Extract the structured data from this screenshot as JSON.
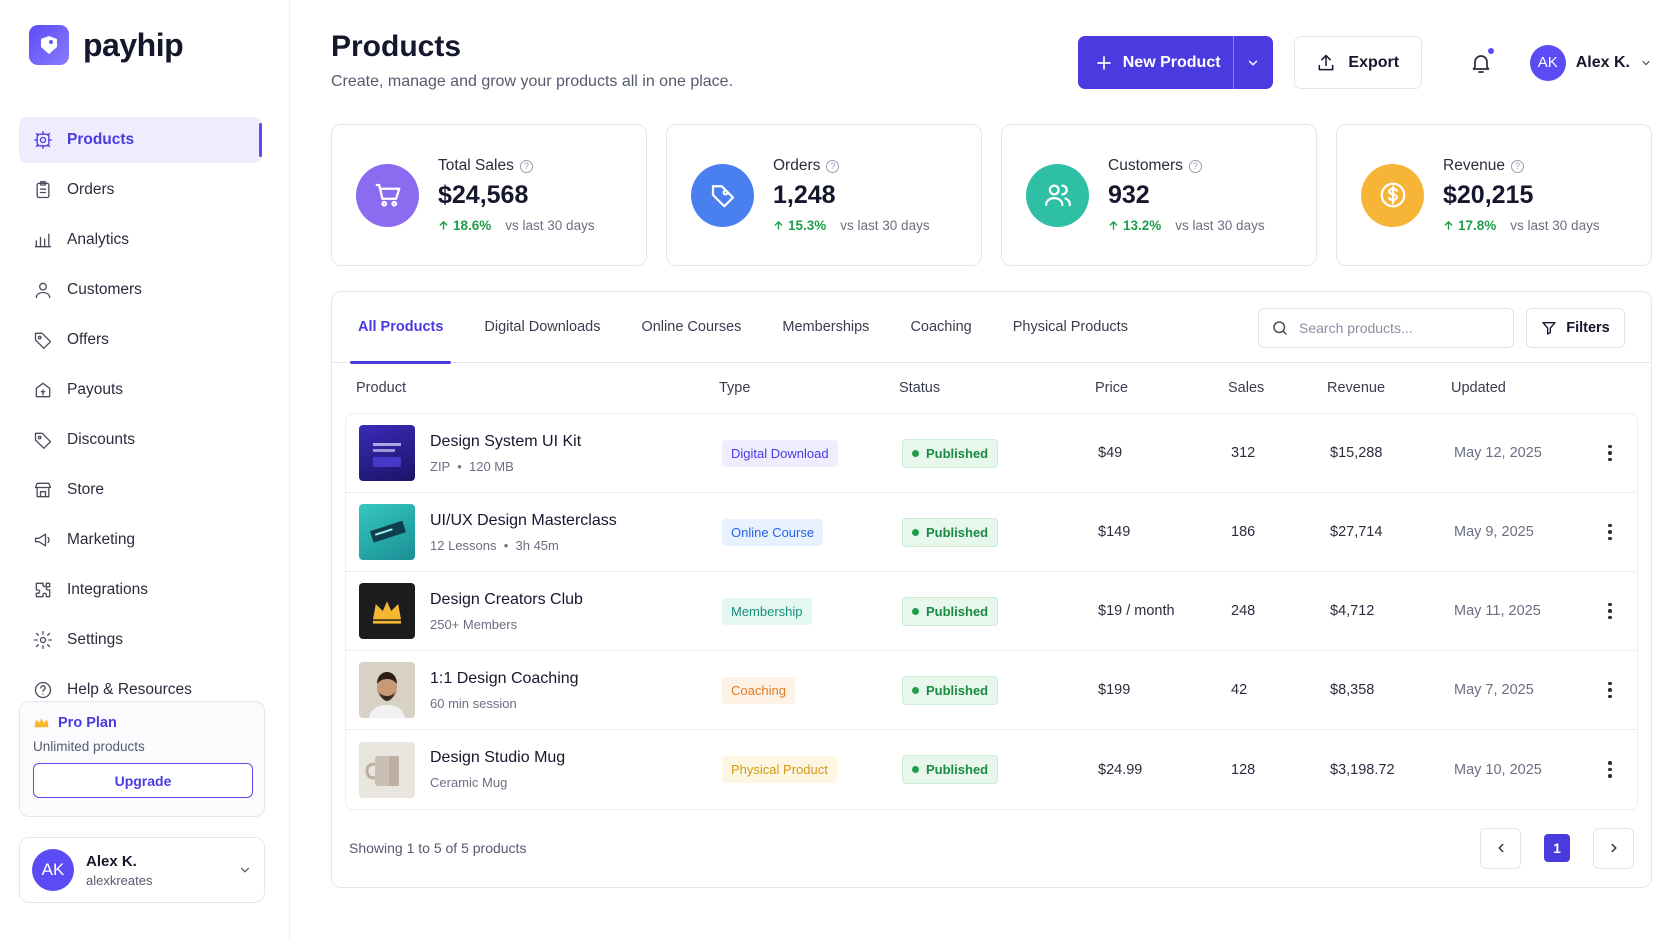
{
  "brand": {
    "name": "payhip"
  },
  "sidebar": {
    "items": [
      {
        "label": "Products",
        "icon": "box-icon",
        "active": true
      },
      {
        "label": "Orders",
        "icon": "clipboard-icon"
      },
      {
        "label": "Analytics",
        "icon": "bar-chart-icon"
      },
      {
        "label": "Customers",
        "icon": "user-icon"
      },
      {
        "label": "Offers",
        "icon": "tag-icon"
      },
      {
        "label": "Payouts",
        "icon": "payout-icon"
      },
      {
        "label": "Discounts",
        "icon": "discount-tag-icon"
      },
      {
        "label": "Store",
        "icon": "store-icon"
      },
      {
        "label": "Marketing",
        "icon": "megaphone-icon"
      },
      {
        "label": "Integrations",
        "icon": "puzzle-icon"
      },
      {
        "label": "Settings",
        "icon": "gear-icon"
      },
      {
        "label": "Help & Resources",
        "icon": "help-icon"
      }
    ],
    "plan": {
      "title": "Pro Plan",
      "subtitle": "Unlimited products",
      "upgrade_label": "Upgrade"
    },
    "user": {
      "initials": "AK",
      "name": "Alex K.",
      "handle": "alexkreates"
    }
  },
  "header": {
    "title": "Products",
    "subtitle": "Create, manage and grow your products all in one place.",
    "new_product_label": "New Product",
    "export_label": "Export",
    "user": {
      "initials": "AK",
      "name": "Alex K."
    }
  },
  "stats": [
    {
      "label": "Total Sales",
      "value": "$24,568",
      "trend": "18.6%",
      "note": "vs last 30 days",
      "color": "#8b6cf0",
      "icon": "cart-icon"
    },
    {
      "label": "Orders",
      "value": "1,248",
      "trend": "15.3%",
      "note": "vs last 30 days",
      "color": "#4a7ff0",
      "icon": "tag-icon"
    },
    {
      "label": "Customers",
      "value": "932",
      "trend": "13.2%",
      "note": "vs last 30 days",
      "color": "#2fbfa5",
      "icon": "users-icon"
    },
    {
      "label": "Revenue",
      "value": "$20,215",
      "trend": "17.8%",
      "note": "vs last 30 days",
      "color": "#f7b538",
      "icon": "dollar-icon"
    }
  ],
  "tabs": [
    "All Products",
    "Digital Downloads",
    "Online Courses",
    "Memberships",
    "Coaching",
    "Physical Products"
  ],
  "search": {
    "placeholder": "Search products..."
  },
  "filters_label": "Filters",
  "table": {
    "headers": {
      "product": "Product",
      "type": "Type",
      "status": "Status",
      "price": "Price",
      "sales": "Sales",
      "revenue": "Revenue",
      "updated": "Updated"
    },
    "rows": [
      {
        "name": "Design System UI Kit",
        "meta1": "ZIP",
        "meta2": "120 MB",
        "type": "Digital Download",
        "status": "Published",
        "price": "$49",
        "sales": "312",
        "revenue": "$15,288",
        "updated": "May 12, 2025"
      },
      {
        "name": "UI/UX Design Masterclass",
        "meta1": "12 Lessons",
        "meta2": "3h 45m",
        "type": "Online Course",
        "status": "Published",
        "price": "$149",
        "sales": "186",
        "revenue": "$27,714",
        "updated": "May 9, 2025"
      },
      {
        "name": "Design Creators Club",
        "meta1": "250+ Members",
        "meta2": "",
        "type": "Membership",
        "status": "Published",
        "price": "$19 / month",
        "sales": "248",
        "revenue": "$4,712",
        "updated": "May 11, 2025"
      },
      {
        "name": "1:1 Design Coaching",
        "meta1": "60 min session",
        "meta2": "",
        "type": "Coaching",
        "status": "Published",
        "price": "$199",
        "sales": "42",
        "revenue": "$8,358",
        "updated": "May 7, 2025"
      },
      {
        "name": "Design Studio Mug",
        "meta1": "Ceramic Mug",
        "meta2": "",
        "type": "Physical Product",
        "status": "Published",
        "price": "$24.99",
        "sales": "128",
        "revenue": "$3,198.72",
        "updated": "May 10, 2025"
      }
    ]
  },
  "pagination": {
    "showing": "Showing 1 to 5 of 5 products",
    "current_page": "1"
  }
}
